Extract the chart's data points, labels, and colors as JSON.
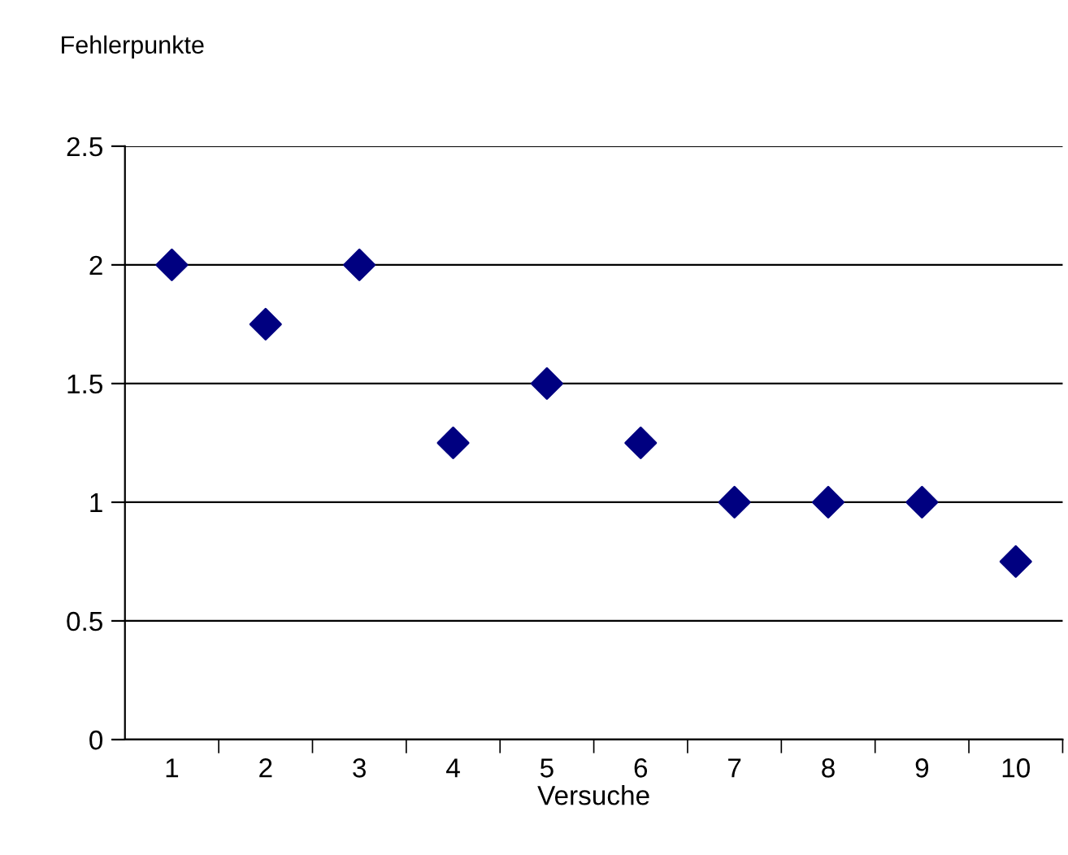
{
  "chart_data": {
    "type": "scatter",
    "ylabel": "Fehlerpunkte",
    "xlabel": "Versuche",
    "categories": [
      "1",
      "2",
      "3",
      "4",
      "5",
      "6",
      "7",
      "8",
      "9",
      "10"
    ],
    "series": [
      {
        "color": "#000080",
        "values": [
          2,
          1.75,
          2,
          1.25,
          1.5,
          1.25,
          1,
          1,
          1,
          0.75
        ]
      }
    ],
    "ylim": [
      0,
      2.5
    ],
    "yticks": [
      0,
      0.5,
      1,
      1.5,
      2,
      2.5
    ],
    "grid": "y",
    "marker": "diamond"
  }
}
